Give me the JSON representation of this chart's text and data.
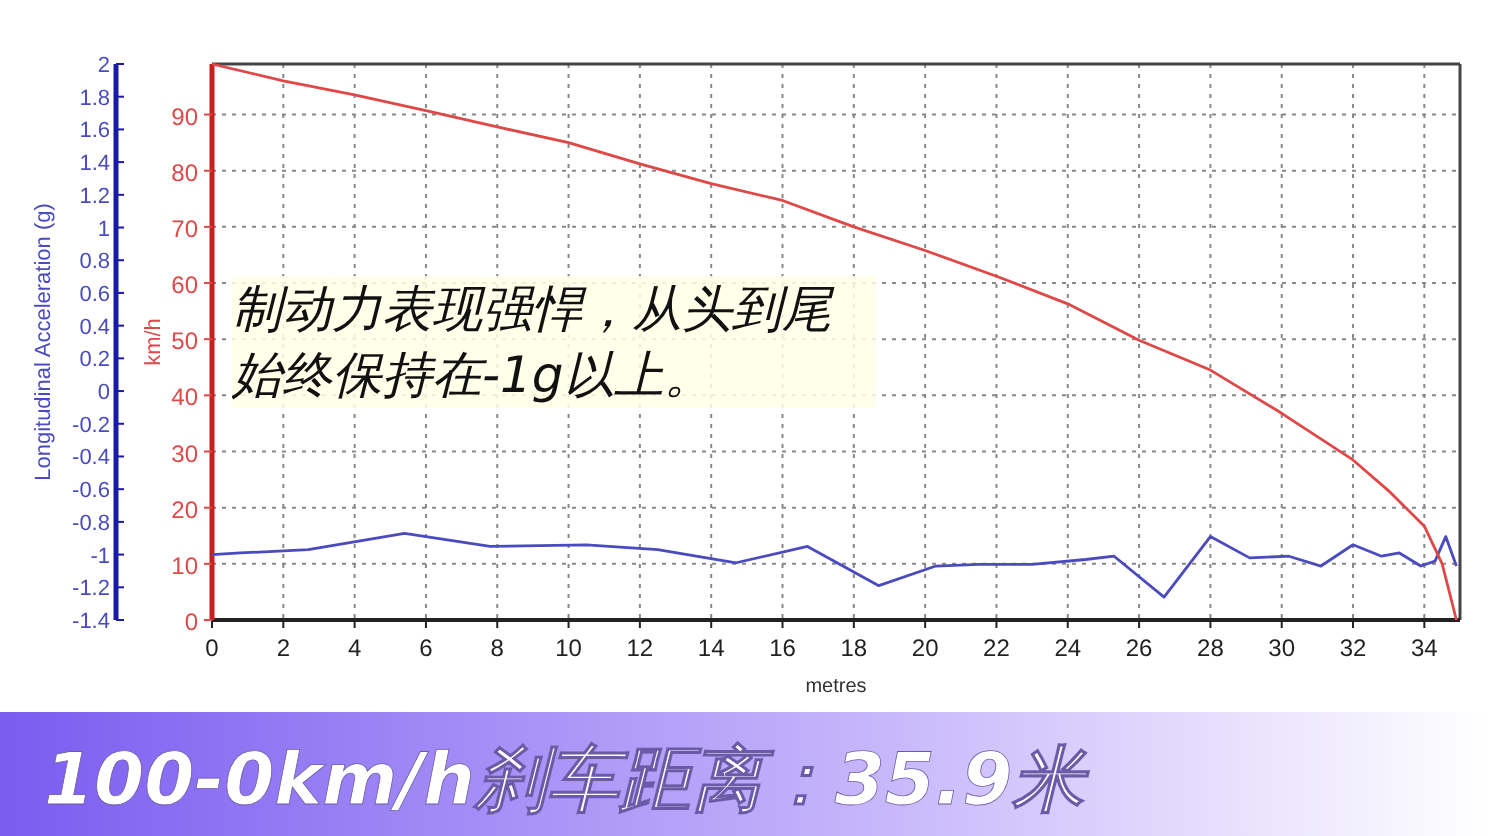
{
  "chart_data": {
    "type": "line",
    "title": "100-0km/h刹车距离：35.9米",
    "xlabel": "metres",
    "ylabel": "Longitudinal Acceleration (g)",
    "y2label": "km/h",
    "annotations": [
      "制动力表现强悍，从头到尾始终保持在-1g以上。"
    ],
    "xlim": [
      0,
      35
    ],
    "xticks": [
      0,
      2,
      4,
      6,
      8,
      10,
      12,
      14,
      16,
      18,
      20,
      22,
      24,
      26,
      28,
      30,
      32,
      34
    ],
    "ylim": [
      -1.4,
      2
    ],
    "yticks": [
      -1.4,
      -1.2,
      -1,
      -0.8,
      -0.6,
      -0.4,
      -0.2,
      0,
      0.2,
      0.4,
      0.6,
      0.8,
      1,
      1.2,
      1.4,
      1.6,
      1.8,
      2
    ],
    "y2lim": [
      0,
      99
    ],
    "y2ticks": [
      0,
      10,
      20,
      30,
      40,
      50,
      60,
      70,
      80,
      90
    ],
    "grid": true,
    "marker": "none",
    "line_style": "solid",
    "series": [
      {
        "color": "#4b4bbf",
        "axis": "y",
        "x": [
          0,
          0.8,
          2.7,
          5.4,
          7.8,
          10.5,
          12.5,
          14.7,
          16.7,
          18.7,
          20.3,
          21.5,
          23,
          24.5,
          25.3,
          26.7,
          28,
          29.1,
          30.2,
          31.1,
          32,
          32.8,
          33.3,
          33.9,
          34.3,
          34.6,
          34.9
        ],
        "values": [
          -1.0,
          -0.99,
          -0.97,
          -0.87,
          -0.95,
          -0.94,
          -0.97,
          -1.05,
          -0.95,
          -1.19,
          -1.07,
          -1.06,
          -1.06,
          -1.03,
          -1.01,
          -1.26,
          -0.89,
          -1.02,
          -1.01,
          -1.07,
          -0.94,
          -1.01,
          -0.99,
          -1.07,
          -1.04,
          -0.89,
          -1.07
        ]
      },
      {
        "color": "#e04848",
        "axis": "y2",
        "x": [
          0,
          2,
          4,
          6,
          8,
          10,
          12,
          14,
          16,
          18,
          20,
          22,
          24,
          26,
          28,
          30,
          32,
          33,
          34,
          34.5,
          34.9
        ],
        "values": [
          99,
          96,
          93.5,
          90.7,
          87.8,
          85,
          81.2,
          77.7,
          74.7,
          70,
          65.8,
          61.2,
          56.3,
          49.8,
          44.5,
          36.8,
          28.5,
          23,
          16.7,
          10,
          0
        ]
      }
    ]
  }
}
